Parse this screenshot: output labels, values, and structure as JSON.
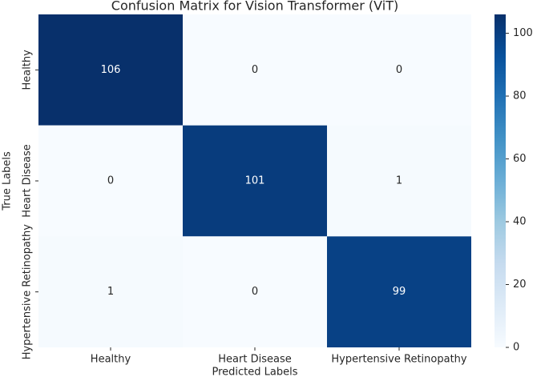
{
  "chart_data": {
    "type": "heatmap",
    "title": "Confusion Matrix for Vision Transformer (ViT)",
    "x_label": "Predicted Labels",
    "y_label": "True Labels",
    "x_categories": [
      "Healthy",
      "Heart Disease",
      "Hypertensive Retinopathy"
    ],
    "y_categories": [
      "Healthy",
      "Heart Disease",
      "Hypertensive Retinopathy"
    ],
    "values": [
      [
        106,
        0,
        0
      ],
      [
        0,
        101,
        1
      ],
      [
        1,
        0,
        99
      ]
    ],
    "colormap": "Blues",
    "clim": [
      0,
      106
    ],
    "cticks": [
      0,
      20,
      40,
      60,
      80,
      100
    ]
  }
}
